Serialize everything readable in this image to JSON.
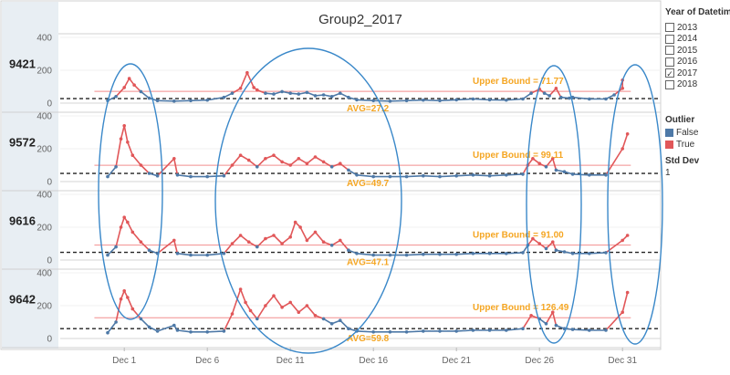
{
  "chart_data": {
    "type": "line",
    "title": "Group2_2017",
    "x_ticks": [
      "Dec 1",
      "Dec 6",
      "Dec 11",
      "Dec 16",
      "Dec 21",
      "Dec 26",
      "Dec 31"
    ],
    "y_ticks": [
      0,
      200,
      400
    ],
    "ylim": [
      0,
      420
    ],
    "colors": {
      "false": "#4e79a7",
      "true": "#e15759",
      "bound_line": "#f28e8e",
      "avg_line": "#222222",
      "annotation": "#f5a623",
      "ellipse": "#3a88c9"
    },
    "panels": [
      {
        "id": "9421",
        "avg": 27.2,
        "upper": 71.77,
        "avg_label": "AVG=27.2",
        "upper_label": "Upper Bound = 71.77",
        "points": [
          [
            0,
            15
          ],
          [
            0.5,
            40
          ],
          [
            1,
            95
          ],
          [
            1.3,
            150
          ],
          [
            1.6,
            110
          ],
          [
            2,
            70
          ],
          [
            2.5,
            30
          ],
          [
            3,
            15
          ],
          [
            4,
            12
          ],
          [
            5,
            15
          ],
          [
            6,
            18
          ],
          [
            7,
            35
          ],
          [
            7.5,
            60
          ],
          [
            8,
            90
          ],
          [
            8.4,
            185
          ],
          [
            8.8,
            95
          ],
          [
            9,
            80
          ],
          [
            9.5,
            60
          ],
          [
            10,
            55
          ],
          [
            10.5,
            70
          ],
          [
            11,
            60
          ],
          [
            11.5,
            55
          ],
          [
            12,
            65
          ],
          [
            12.5,
            45
          ],
          [
            13,
            50
          ],
          [
            13.5,
            40
          ],
          [
            14,
            60
          ],
          [
            14.5,
            35
          ],
          [
            15,
            20
          ],
          [
            16,
            15
          ],
          [
            17,
            12
          ],
          [
            18,
            15
          ],
          [
            19,
            18
          ],
          [
            20,
            15
          ],
          [
            21,
            20
          ],
          [
            22,
            25
          ],
          [
            23,
            20
          ],
          [
            24,
            18
          ],
          [
            25,
            25
          ],
          [
            25.5,
            60
          ],
          [
            26,
            85
          ],
          [
            26.3,
            60
          ],
          [
            26.6,
            45
          ],
          [
            27,
            90
          ],
          [
            27.3,
            35
          ],
          [
            27.8,
            30
          ],
          [
            28,
            35
          ],
          [
            29,
            25
          ],
          [
            30,
            25
          ],
          [
            30.5,
            50
          ],
          [
            31,
            90
          ],
          [
            31,
            140
          ]
        ]
      },
      {
        "id": "9572",
        "avg": 49.7,
        "upper": 99.11,
        "avg_label": "AVG=49.7",
        "upper_label": "Upper Bound = 99.11",
        "points": [
          [
            0,
            30
          ],
          [
            0.5,
            90
          ],
          [
            0.8,
            260
          ],
          [
            1,
            340
          ],
          [
            1.2,
            240
          ],
          [
            1.5,
            160
          ],
          [
            2,
            100
          ],
          [
            2.5,
            50
          ],
          [
            3,
            35
          ],
          [
            4,
            140
          ],
          [
            4.2,
            40
          ],
          [
            5,
            30
          ],
          [
            6,
            30
          ],
          [
            7,
            35
          ],
          [
            7.5,
            100
          ],
          [
            8,
            160
          ],
          [
            8.5,
            130
          ],
          [
            9,
            90
          ],
          [
            9.5,
            140
          ],
          [
            10,
            160
          ],
          [
            10.5,
            120
          ],
          [
            11,
            100
          ],
          [
            11.5,
            140
          ],
          [
            12,
            110
          ],
          [
            12.5,
            150
          ],
          [
            13,
            120
          ],
          [
            13.5,
            90
          ],
          [
            14,
            110
          ],
          [
            14.5,
            70
          ],
          [
            15,
            40
          ],
          [
            16,
            30
          ],
          [
            17,
            30
          ],
          [
            18,
            30
          ],
          [
            19,
            35
          ],
          [
            20,
            30
          ],
          [
            21,
            35
          ],
          [
            22,
            40
          ],
          [
            23,
            35
          ],
          [
            24,
            40
          ],
          [
            25,
            45
          ],
          [
            25.3,
            100
          ],
          [
            25.6,
            140
          ],
          [
            26,
            110
          ],
          [
            26.4,
            90
          ],
          [
            26.8,
            140
          ],
          [
            27,
            70
          ],
          [
            27.5,
            60
          ],
          [
            28,
            45
          ],
          [
            29,
            40
          ],
          [
            30,
            40
          ],
          [
            31,
            200
          ],
          [
            31.3,
            290
          ]
        ]
      },
      {
        "id": "9616",
        "avg": 47.1,
        "upper": 91.0,
        "avg_label": "AVG=47.1",
        "upper_label": "Upper Bound = 91.00",
        "points": [
          [
            0,
            30
          ],
          [
            0.5,
            80
          ],
          [
            0.8,
            200
          ],
          [
            1,
            260
          ],
          [
            1.2,
            230
          ],
          [
            1.5,
            170
          ],
          [
            2,
            110
          ],
          [
            2.5,
            60
          ],
          [
            3,
            40
          ],
          [
            4,
            120
          ],
          [
            4.2,
            40
          ],
          [
            5,
            30
          ],
          [
            6,
            30
          ],
          [
            7,
            40
          ],
          [
            7.5,
            100
          ],
          [
            8,
            150
          ],
          [
            8.5,
            110
          ],
          [
            9,
            80
          ],
          [
            9.5,
            130
          ],
          [
            10,
            150
          ],
          [
            10.5,
            100
          ],
          [
            11,
            140
          ],
          [
            11.3,
            230
          ],
          [
            11.6,
            200
          ],
          [
            12,
            120
          ],
          [
            12.5,
            170
          ],
          [
            13,
            110
          ],
          [
            13.5,
            90
          ],
          [
            14,
            120
          ],
          [
            14.5,
            60
          ],
          [
            15,
            40
          ],
          [
            16,
            30
          ],
          [
            17,
            30
          ],
          [
            18,
            30
          ],
          [
            19,
            35
          ],
          [
            20,
            35
          ],
          [
            21,
            35
          ],
          [
            22,
            40
          ],
          [
            23,
            40
          ],
          [
            24,
            40
          ],
          [
            25,
            45
          ],
          [
            25.3,
            90
          ],
          [
            25.6,
            130
          ],
          [
            26,
            100
          ],
          [
            26.4,
            70
          ],
          [
            26.8,
            110
          ],
          [
            27,
            60
          ],
          [
            27.5,
            50
          ],
          [
            28,
            40
          ],
          [
            29,
            40
          ],
          [
            30,
            45
          ],
          [
            31,
            120
          ],
          [
            31.3,
            150
          ]
        ]
      },
      {
        "id": "9642",
        "avg": 59.8,
        "upper": 126.49,
        "avg_label": "AVG=59.8",
        "upper_label": "Upper Bound = 126.49",
        "points": [
          [
            0,
            35
          ],
          [
            0.5,
            100
          ],
          [
            0.8,
            240
          ],
          [
            1,
            290
          ],
          [
            1.2,
            250
          ],
          [
            1.5,
            180
          ],
          [
            2,
            120
          ],
          [
            2.5,
            70
          ],
          [
            3,
            45
          ],
          [
            4,
            80
          ],
          [
            4.2,
            50
          ],
          [
            5,
            40
          ],
          [
            6,
            40
          ],
          [
            7,
            45
          ],
          [
            7.5,
            150
          ],
          [
            8,
            300
          ],
          [
            8.3,
            220
          ],
          [
            8.6,
            170
          ],
          [
            9,
            120
          ],
          [
            9.5,
            200
          ],
          [
            10,
            260
          ],
          [
            10.5,
            190
          ],
          [
            11,
            220
          ],
          [
            11.5,
            160
          ],
          [
            12,
            200
          ],
          [
            12.5,
            140
          ],
          [
            13,
            120
          ],
          [
            13.5,
            90
          ],
          [
            14,
            110
          ],
          [
            14.5,
            60
          ],
          [
            15,
            45
          ],
          [
            16,
            40
          ],
          [
            17,
            40
          ],
          [
            18,
            40
          ],
          [
            19,
            45
          ],
          [
            20,
            45
          ],
          [
            21,
            45
          ],
          [
            22,
            50
          ],
          [
            23,
            50
          ],
          [
            24,
            50
          ],
          [
            25,
            60
          ],
          [
            25.5,
            140
          ],
          [
            26,
            120
          ],
          [
            26.4,
            90
          ],
          [
            26.8,
            160
          ],
          [
            27,
            80
          ],
          [
            27.5,
            60
          ],
          [
            28,
            55
          ],
          [
            29,
            50
          ],
          [
            30,
            50
          ],
          [
            31,
            160
          ],
          [
            31.3,
            280
          ]
        ]
      }
    ]
  },
  "legend": {
    "year_title": "Year of Datetim..",
    "years": [
      {
        "label": "2013",
        "checked": false
      },
      {
        "label": "2014",
        "checked": false
      },
      {
        "label": "2015",
        "checked": false
      },
      {
        "label": "2016",
        "checked": false
      },
      {
        "label": "2017",
        "checked": true
      },
      {
        "label": "2018",
        "checked": false
      }
    ],
    "outlier_title": "Outlier",
    "outlier_false": "False",
    "outlier_true": "True",
    "std_title": "Std Dev",
    "std_value": "1",
    "check_glyph": "✓"
  }
}
